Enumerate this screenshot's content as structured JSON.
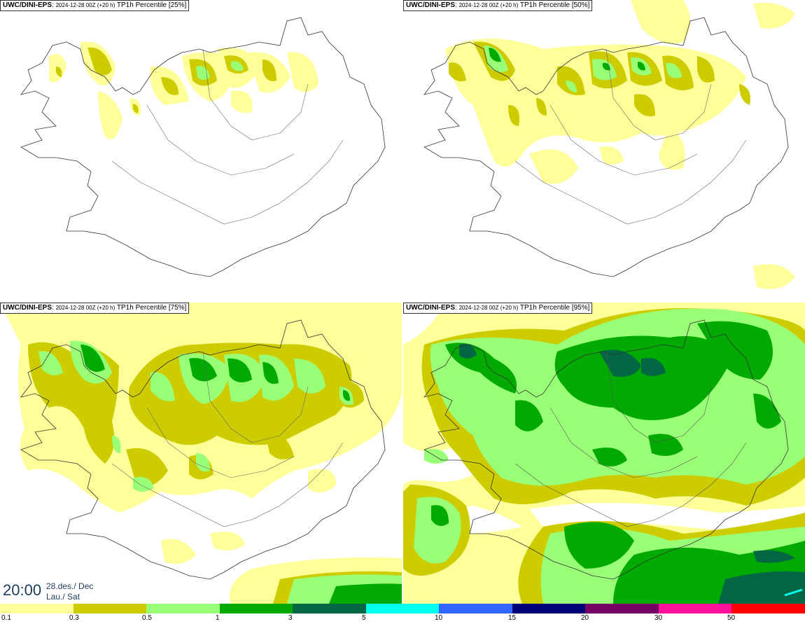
{
  "panels": [
    {
      "model": "UWC/DINI-EPS",
      "run": "2024-12-28 00Z (+20 h)",
      "product": "TP1h Percentile [25%]"
    },
    {
      "model": "UWC/DINI-EPS",
      "run": "2024-12-28 00Z (+20 h)",
      "product": "TP1h Percentile [50%]"
    },
    {
      "model": "UWC/DINI-EPS",
      "run": "2024-12-28 00Z (+20 h)",
      "product": "TP1h Percentile [75%]"
    },
    {
      "model": "UWC/DINI-EPS",
      "run": "2024-12-28 00Z (+20 h)",
      "product": "TP1h Percentile [95%]"
    }
  ],
  "valid_time": {
    "time": "20:00",
    "date": "28.des./ Dec",
    "day": "Lau./ Sat"
  },
  "legend": {
    "labels": [
      "0.1",
      "0.3",
      "0.5",
      "1",
      "3",
      "5",
      "10",
      "15",
      "20",
      "30",
      "50"
    ],
    "colors": [
      "#ffff99",
      "#cccc00",
      "#99ff77",
      "#00aa00",
      "#006644",
      "#00ffee",
      "#3366ff",
      "#000077",
      "#770066",
      "#ff1199",
      "#ff0000"
    ]
  }
}
